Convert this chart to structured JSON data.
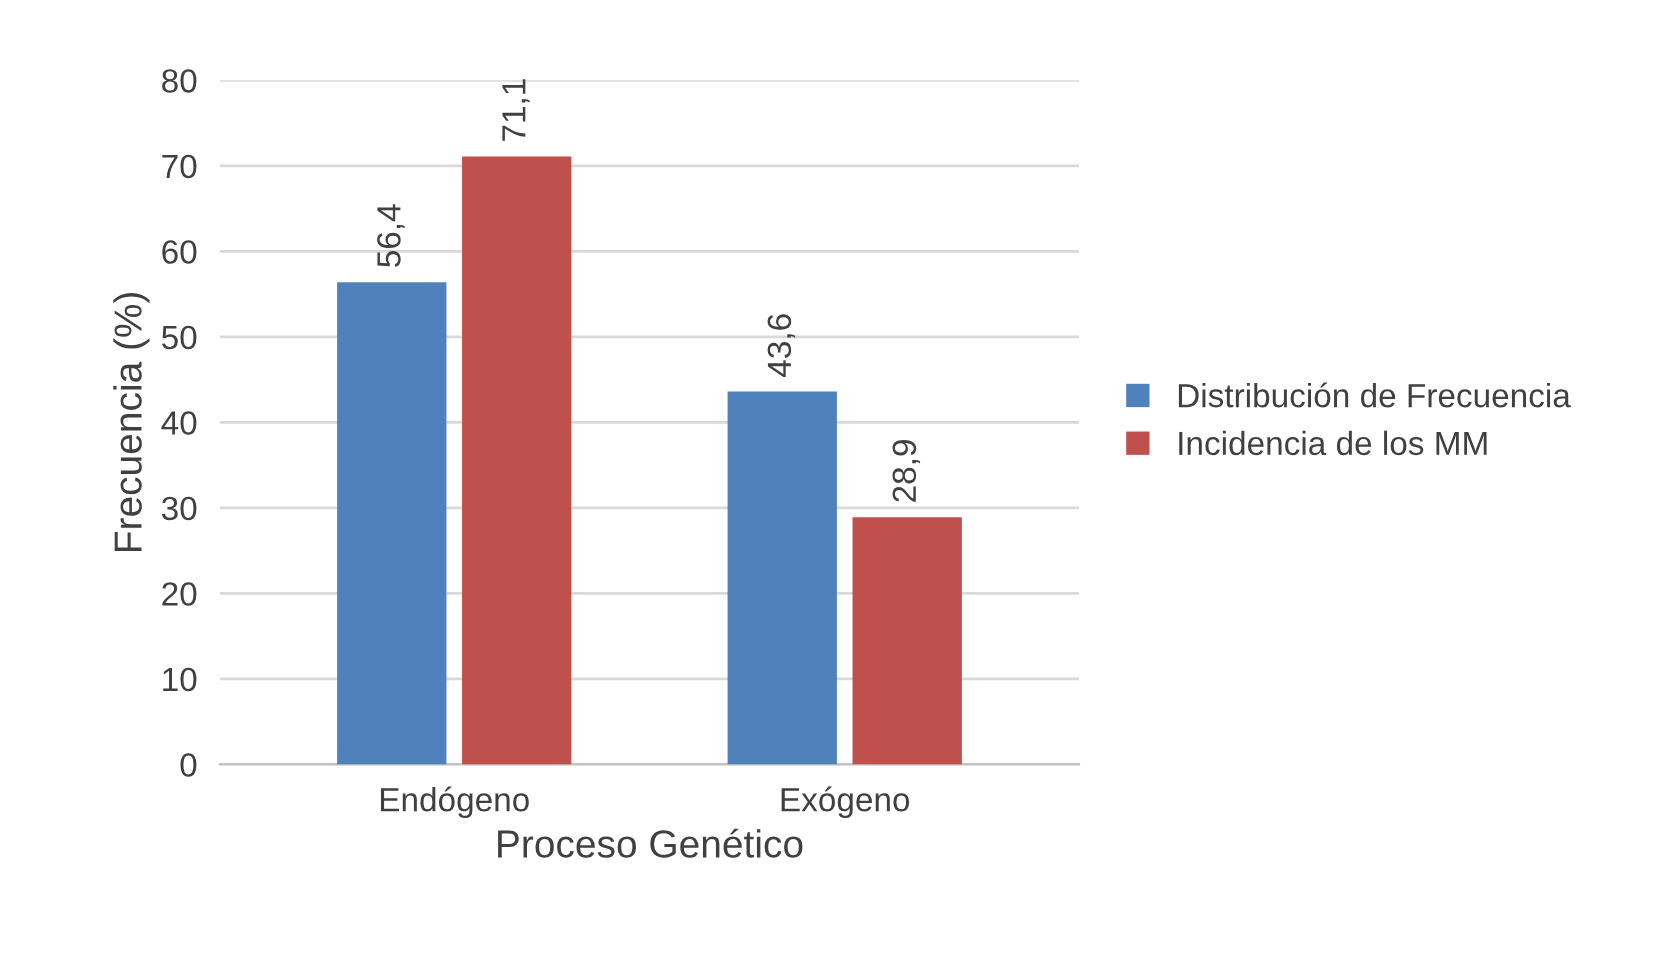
{
  "chart_data": {
    "type": "bar",
    "xlabel": "Proceso Genético",
    "ylabel": "Frecuencia (%)",
    "categories": [
      "Endógeno",
      "Exógeno"
    ],
    "series": [
      {
        "name": "Distribución de Frecuencia",
        "color": "#4f81bd",
        "values": [
          56.4,
          43.6
        ],
        "value_labels": [
          "56,4",
          "43,6"
        ]
      },
      {
        "name": "Incidencia de los MM",
        "color": "#c0504d",
        "values": [
          71.1,
          28.9
        ],
        "value_labels": [
          "71,1",
          "28,9"
        ]
      }
    ],
    "ylim": [
      0,
      80
    ],
    "yticks": [
      0,
      10,
      20,
      30,
      40,
      50,
      60,
      70,
      80
    ],
    "grid": "y",
    "legend": "right"
  }
}
